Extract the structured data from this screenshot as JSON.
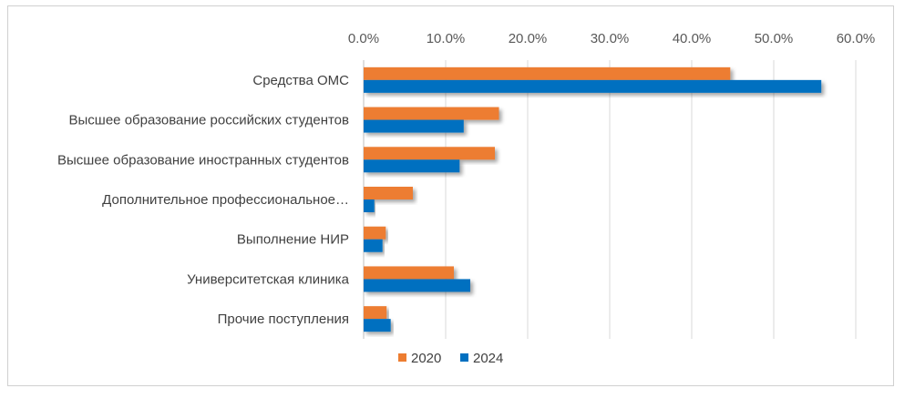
{
  "chart_data": {
    "type": "bar",
    "orientation": "horizontal",
    "categories": [
      "Средства ОМС",
      "Высшее образование российских студентов",
      "Высшее образование иностранных студентов",
      "Дополнительное профессиональное…",
      "Выполнение НИР",
      "Университетская клиника",
      "Прочие поступления"
    ],
    "series": [
      {
        "name": "2020",
        "color": "#ED7D31",
        "values": [
          44.7,
          16.5,
          16.0,
          6.0,
          2.7,
          11.0,
          2.8
        ]
      },
      {
        "name": "2024",
        "color": "#0070C0",
        "values": [
          55.8,
          12.2,
          11.7,
          1.3,
          2.3,
          13.0,
          3.3
        ]
      }
    ],
    "x_ticks": [
      "0.0%",
      "10.0%",
      "20.0%",
      "30.0%",
      "40.0%",
      "50.0%",
      "60.0%"
    ],
    "xlim": [
      0,
      60
    ],
    "x_axis_position": "top",
    "grid": true,
    "legend_position": "bottom",
    "title": "",
    "xlabel": "",
    "ylabel": ""
  }
}
